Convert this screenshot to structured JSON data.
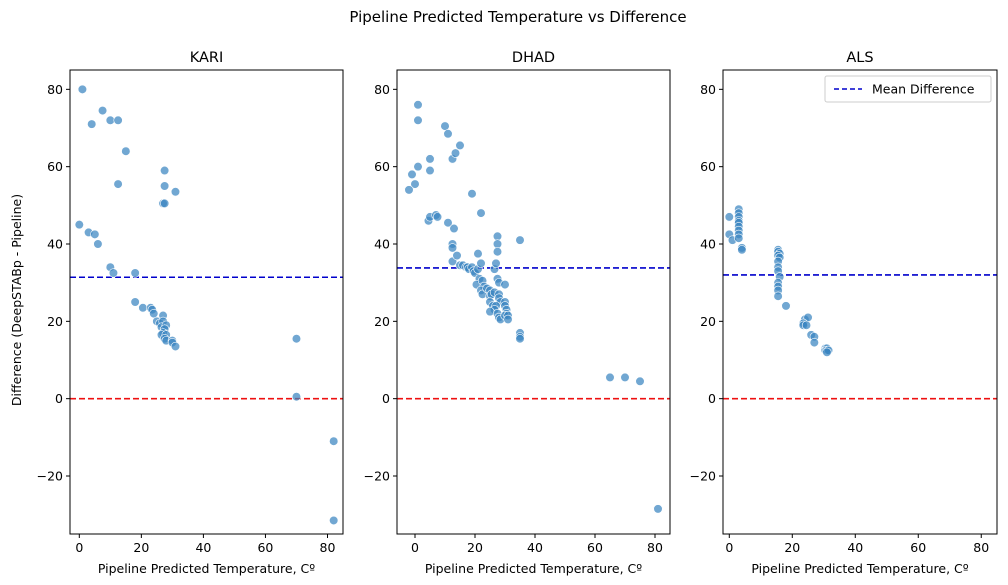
{
  "figure": {
    "title": "Pipeline Predicted Temperature vs Difference",
    "ylabel": "Difference (DeepSTABp - Pipeline)",
    "legend": {
      "label": "Mean Difference",
      "placement": "upper-right of ALS panel",
      "line_color": "#0000cc"
    }
  },
  "chart_data": [
    {
      "type": "scatter",
      "title": "KARI",
      "xlabel": "Pipeline Predicted Temperature, Cº",
      "xlim": [
        -3,
        85
      ],
      "ylim": [
        -35,
        85
      ],
      "xticks": [
        0,
        20,
        40,
        60,
        80
      ],
      "yticks": [
        -20,
        0,
        20,
        40,
        60,
        80
      ],
      "point_color": "#3a85c0",
      "mean_difference": 31.4,
      "zero_line": 0,
      "points": [
        [
          1,
          80
        ],
        [
          4,
          71
        ],
        [
          7.5,
          74.5
        ],
        [
          10,
          72
        ],
        [
          12.5,
          72
        ],
        [
          15,
          64
        ],
        [
          12.5,
          55.5
        ],
        [
          27.5,
          59
        ],
        [
          27.5,
          55
        ],
        [
          31,
          53.5
        ],
        [
          27,
          50.5
        ],
        [
          27.5,
          50.5
        ],
        [
          0,
          45
        ],
        [
          3,
          43
        ],
        [
          5,
          42.5
        ],
        [
          6,
          40
        ],
        [
          10,
          34
        ],
        [
          11,
          32.5
        ],
        [
          18,
          32.5
        ],
        [
          18,
          25
        ],
        [
          20.5,
          23.5
        ],
        [
          23,
          23.5
        ],
        [
          23.5,
          23
        ],
        [
          24,
          22
        ],
        [
          25,
          20
        ],
        [
          26,
          19.5
        ],
        [
          27,
          21.5
        ],
        [
          27,
          20
        ],
        [
          26.5,
          18.5
        ],
        [
          28,
          19
        ],
        [
          27.5,
          18
        ],
        [
          27,
          17
        ],
        [
          26.5,
          16.5
        ],
        [
          28,
          16.5
        ],
        [
          27.5,
          15.5
        ],
        [
          28,
          15
        ],
        [
          30,
          15
        ],
        [
          30,
          14.5
        ],
        [
          31,
          13.5
        ],
        [
          70,
          15.5
        ],
        [
          70,
          0.5
        ],
        [
          82,
          -11
        ],
        [
          82,
          -31.5
        ]
      ]
    },
    {
      "type": "scatter",
      "title": "DHAD",
      "xlabel": "Pipeline Predicted Temperature, Cº",
      "xlim": [
        -6,
        85
      ],
      "ylim": [
        -35,
        85
      ],
      "xticks": [
        0,
        20,
        40,
        60,
        80
      ],
      "yticks": [
        -20,
        0,
        20,
        40,
        60,
        80
      ],
      "point_color": "#3a85c0",
      "mean_difference": 33.8,
      "zero_line": 0,
      "points": [
        [
          1,
          76
        ],
        [
          1,
          72
        ],
        [
          -1,
          58
        ],
        [
          0,
          55.5
        ],
        [
          1,
          60
        ],
        [
          -2,
          54
        ],
        [
          5,
          62
        ],
        [
          5,
          59
        ],
        [
          4.5,
          46
        ],
        [
          5,
          47
        ],
        [
          7,
          47.5
        ],
        [
          7.5,
          47
        ],
        [
          10,
          70.5
        ],
        [
          11,
          68.5
        ],
        [
          12.5,
          62
        ],
        [
          13.5,
          63.5
        ],
        [
          15,
          65.5
        ],
        [
          19,
          53
        ],
        [
          22,
          48
        ],
        [
          11,
          45.5
        ],
        [
          13,
          44
        ],
        [
          12.5,
          40
        ],
        [
          12.5,
          39
        ],
        [
          12.5,
          35.5
        ],
        [
          14,
          37
        ],
        [
          15,
          34.5
        ],
        [
          16,
          34.5
        ],
        [
          17,
          34
        ],
        [
          17.5,
          34
        ],
        [
          18,
          33.5
        ],
        [
          19,
          34
        ],
        [
          19.5,
          33
        ],
        [
          20,
          32.5
        ],
        [
          21,
          33.5
        ],
        [
          21.5,
          31
        ],
        [
          20.5,
          29.5
        ],
        [
          21,
          37.5
        ],
        [
          22,
          35
        ],
        [
          22.5,
          30.5
        ],
        [
          23,
          29
        ],
        [
          22,
          28
        ],
        [
          22.5,
          27
        ],
        [
          24,
          28.5
        ],
        [
          25,
          28
        ],
        [
          25,
          26.5
        ],
        [
          25.5,
          27
        ],
        [
          26.5,
          27.5
        ],
        [
          25,
          25
        ],
        [
          26,
          24
        ],
        [
          26.5,
          33.5
        ],
        [
          27,
          35
        ],
        [
          27.5,
          42
        ],
        [
          27.5,
          40
        ],
        [
          27.5,
          38
        ],
        [
          27.5,
          31
        ],
        [
          28,
          30
        ],
        [
          28,
          27
        ],
        [
          28,
          26
        ],
        [
          28.5,
          25
        ],
        [
          27,
          24
        ],
        [
          26.5,
          23
        ],
        [
          25,
          22.5
        ],
        [
          27.5,
          22
        ],
        [
          28,
          21
        ],
        [
          28.5,
          20.5
        ],
        [
          30,
          29.5
        ],
        [
          30,
          25
        ],
        [
          30,
          24
        ],
        [
          30.5,
          23
        ],
        [
          30.5,
          22
        ],
        [
          30,
          21.5
        ],
        [
          31,
          21.5
        ],
        [
          31,
          20.5
        ],
        [
          35,
          41
        ],
        [
          35,
          17
        ],
        [
          35,
          16
        ],
        [
          35,
          15.5
        ],
        [
          65,
          5.5
        ],
        [
          70,
          5.5
        ],
        [
          75,
          4.5
        ],
        [
          81,
          -28.5
        ]
      ]
    },
    {
      "type": "scatter",
      "title": "ALS",
      "xlabel": "Pipeline Predicted Temperature, Cº",
      "xlim": [
        -2,
        85
      ],
      "ylim": [
        -35,
        85
      ],
      "xticks": [
        0,
        20,
        40,
        60,
        80
      ],
      "yticks": [
        -20,
        0,
        20,
        40,
        60,
        80
      ],
      "point_color": "#3a85c0",
      "mean_difference": 32.0,
      "zero_line": 0,
      "points": [
        [
          0,
          47
        ],
        [
          0,
          42.5
        ],
        [
          1,
          41
        ],
        [
          3,
          49
        ],
        [
          3,
          48
        ],
        [
          3,
          47
        ],
        [
          3,
          46
        ],
        [
          3,
          45.5
        ],
        [
          3,
          44.5
        ],
        [
          3,
          43.5
        ],
        [
          3,
          42.5
        ],
        [
          3,
          41.5
        ],
        [
          4,
          39
        ],
        [
          4,
          38.5
        ],
        [
          15.5,
          38.5
        ],
        [
          15.5,
          38
        ],
        [
          16,
          37.5
        ],
        [
          15.5,
          37
        ],
        [
          16,
          36.5
        ],
        [
          15.5,
          35.5
        ],
        [
          15.5,
          34
        ],
        [
          15.5,
          33
        ],
        [
          16,
          31.5
        ],
        [
          15.5,
          30
        ],
        [
          15.5,
          29
        ],
        [
          15.5,
          28
        ],
        [
          15.5,
          26.5
        ],
        [
          18,
          24
        ],
        [
          24,
          20.5
        ],
        [
          25,
          21
        ],
        [
          23.5,
          19.5
        ],
        [
          23.5,
          19
        ],
        [
          24.5,
          19
        ],
        [
          26,
          16.5
        ],
        [
          27,
          16
        ],
        [
          27,
          14.5
        ],
        [
          30.5,
          13
        ],
        [
          30.5,
          12.5
        ],
        [
          31,
          13
        ],
        [
          31,
          12.5
        ],
        [
          31.5,
          12.5
        ],
        [
          31,
          12
        ]
      ]
    }
  ]
}
